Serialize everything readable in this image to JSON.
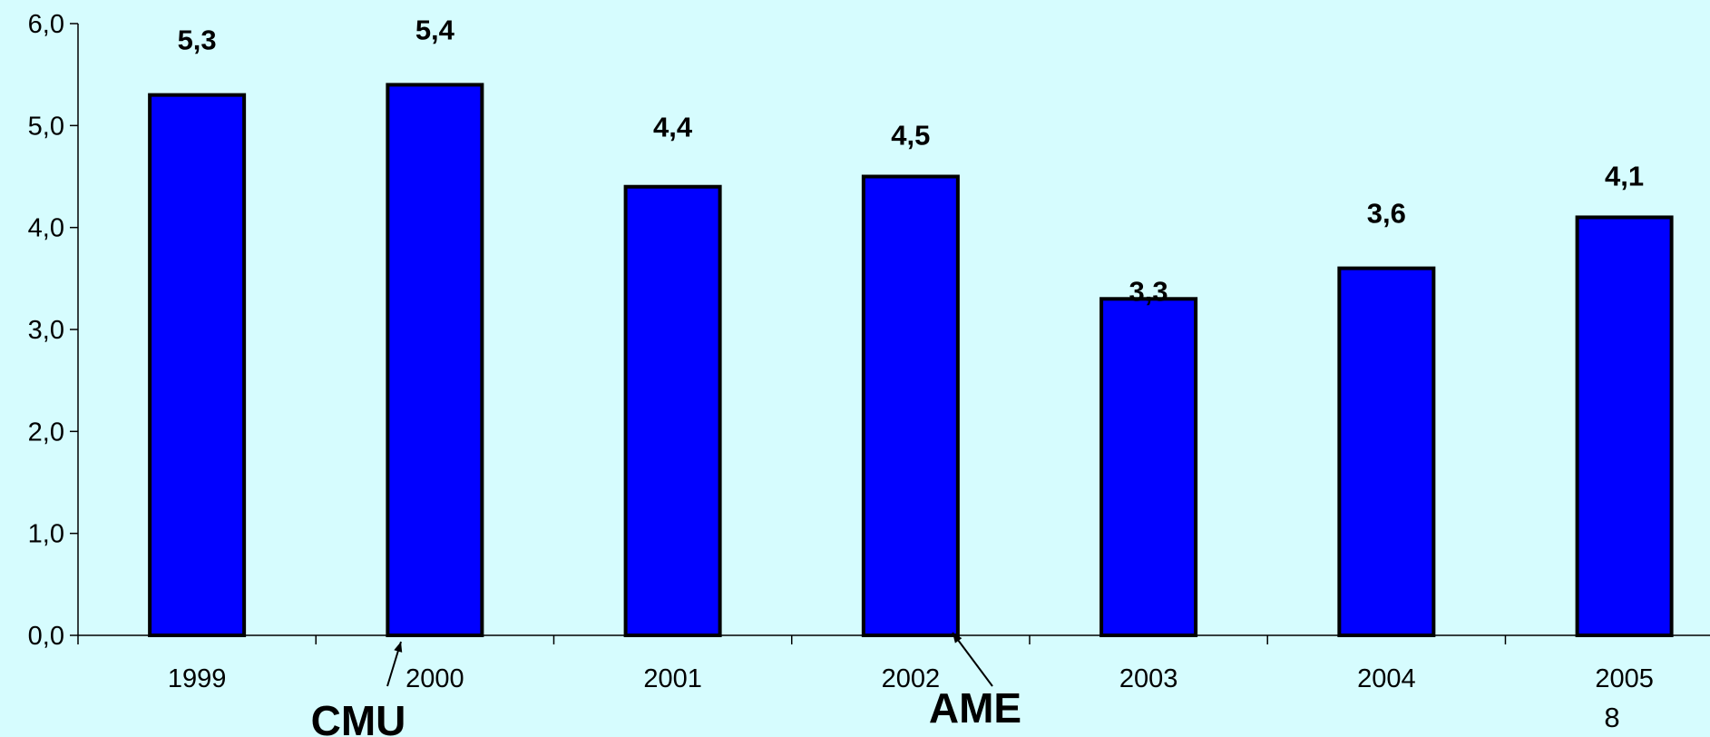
{
  "chart_data": {
    "type": "bar",
    "title": "",
    "xlabel": "",
    "ylabel": "",
    "categories": [
      "1999",
      "2000",
      "2001",
      "2002",
      "2003",
      "2004",
      "2005"
    ],
    "values": [
      5.3,
      5.4,
      4.4,
      4.5,
      3.3,
      3.6,
      4.1
    ],
    "data_labels": [
      "5,3",
      "5,4",
      "4,4",
      "4,5",
      "3,3",
      "3,6",
      "4,1"
    ],
    "ylim": [
      0,
      6
    ],
    "y_ticks": [
      0,
      1,
      2,
      3,
      4,
      5,
      6
    ],
    "y_tick_labels": [
      "0,0",
      "1,0",
      "2,0",
      "3,0",
      "4,0",
      "5,0",
      "6,0"
    ],
    "grid": false,
    "legend": "none",
    "annotations": [
      {
        "text": "CMU",
        "points_to_category": "2000"
      },
      {
        "text": "AME",
        "points_to_category": "2002"
      }
    ],
    "colors": {
      "bar_fill": "#0000ff",
      "bar_stroke": "#000000",
      "background": "#d6fcfe"
    }
  },
  "page": {
    "number": "8"
  }
}
